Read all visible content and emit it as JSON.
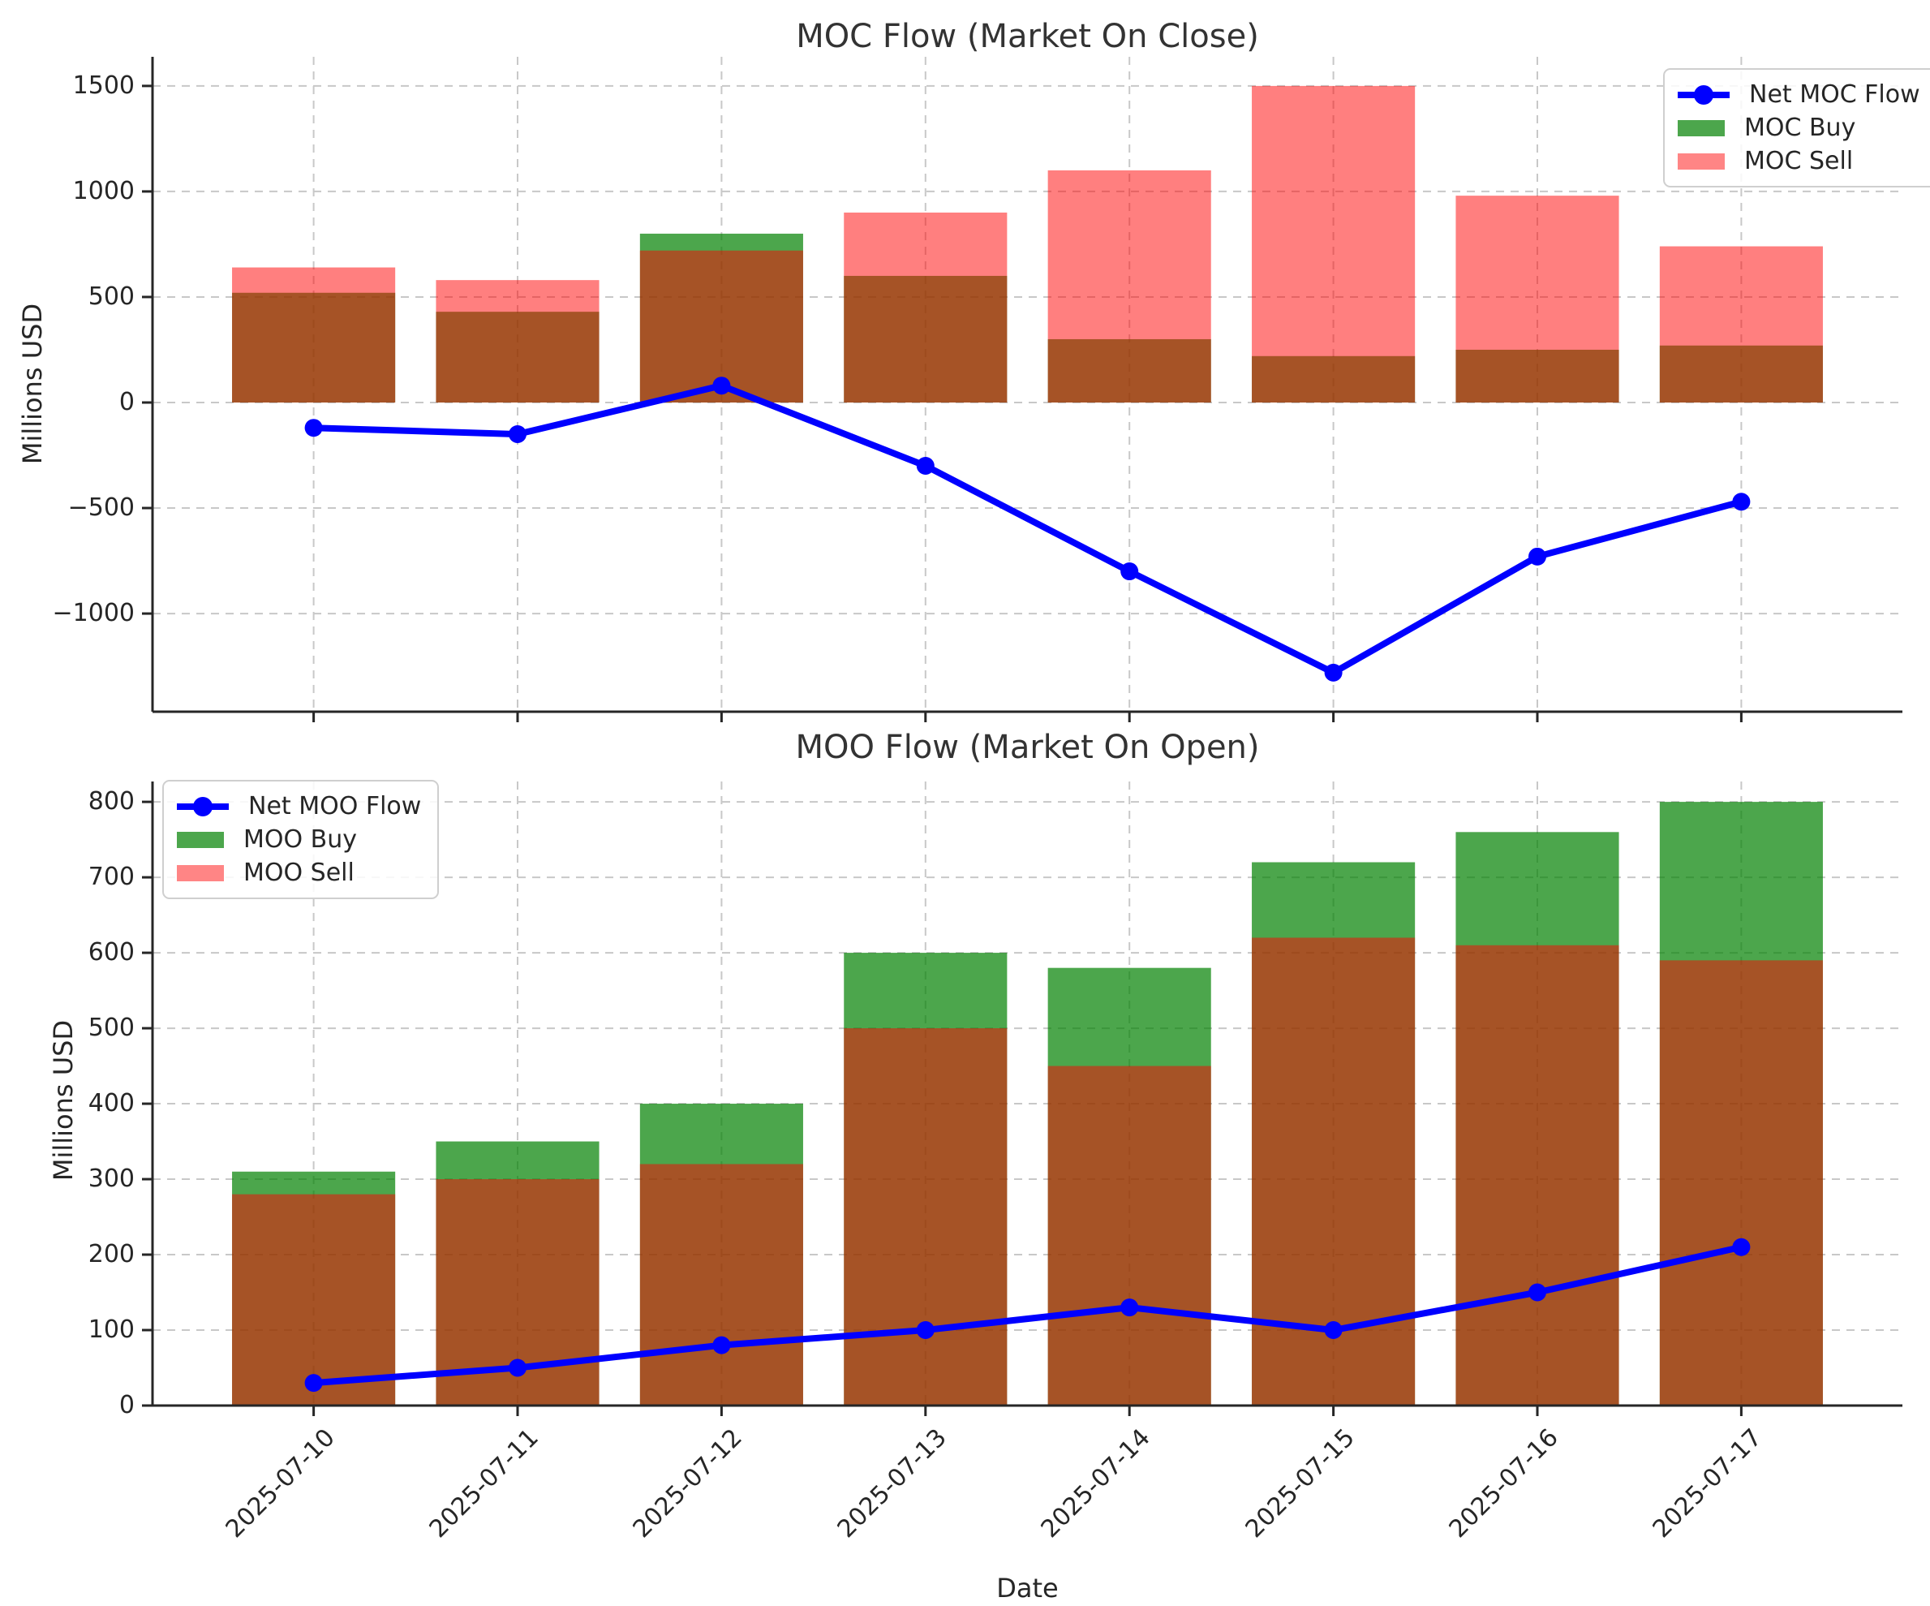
{
  "chart_data": [
    {
      "id": "moc",
      "type": "bar+line",
      "title": "MOC Flow (Market On Close)",
      "ylabel": "Millions USD",
      "categories": [
        "2025-07-10",
        "2025-07-11",
        "2025-07-12",
        "2025-07-13",
        "2025-07-14",
        "2025-07-15",
        "2025-07-16",
        "2025-07-17"
      ],
      "series": [
        {
          "key": "net",
          "name": "Net MOC Flow",
          "type": "line",
          "color": "#0000ff",
          "values": [
            -120,
            -150,
            80,
            -300,
            -800,
            -1280,
            -730,
            -470
          ]
        },
        {
          "key": "buy",
          "name": "MOC Buy",
          "type": "bar",
          "color": "#008000",
          "alpha": 0.7,
          "legend_color": "#4ca64c",
          "values": [
            520,
            430,
            800,
            600,
            300,
            220,
            250,
            270
          ]
        },
        {
          "key": "sell",
          "name": "MOC Sell",
          "type": "bar",
          "color": "#ff0000",
          "alpha": 0.5,
          "legend_color": "#ff8585",
          "values": [
            640,
            580,
            720,
            900,
            1100,
            1500,
            980,
            740
          ]
        }
      ],
      "yticks": [
        -1000,
        -500,
        0,
        500,
        1000,
        1500
      ],
      "ylim": [
        -1465,
        1638
      ],
      "grid": true,
      "legend_position": "top-right",
      "show_x_tick_labels": false
    },
    {
      "id": "moo",
      "type": "bar+line",
      "title": "MOO Flow (Market On Open)",
      "ylabel": "Millions USD",
      "xlabel": "Date",
      "categories": [
        "2025-07-10",
        "2025-07-11",
        "2025-07-12",
        "2025-07-13",
        "2025-07-14",
        "2025-07-15",
        "2025-07-16",
        "2025-07-17"
      ],
      "series": [
        {
          "key": "net",
          "name": "Net MOO Flow",
          "type": "line",
          "color": "#0000ff",
          "values": [
            30,
            50,
            80,
            100,
            130,
            100,
            150,
            210
          ]
        },
        {
          "key": "buy",
          "name": "MOO Buy",
          "type": "bar",
          "color": "#008000",
          "alpha": 0.7,
          "legend_color": "#4ca64c",
          "values": [
            310,
            350,
            400,
            600,
            580,
            720,
            760,
            800
          ]
        },
        {
          "key": "sell",
          "name": "MOO Sell",
          "type": "bar",
          "color": "#ff0000",
          "alpha": 0.5,
          "legend_color": "#ff8585",
          "values": [
            280,
            300,
            320,
            500,
            450,
            620,
            610,
            590
          ]
        }
      ],
      "yticks": [
        0,
        100,
        200,
        300,
        400,
        500,
        600,
        700,
        800
      ],
      "ylim": [
        0,
        827
      ],
      "grid": true,
      "legend_position": "top-left",
      "show_x_tick_labels": true
    }
  ]
}
